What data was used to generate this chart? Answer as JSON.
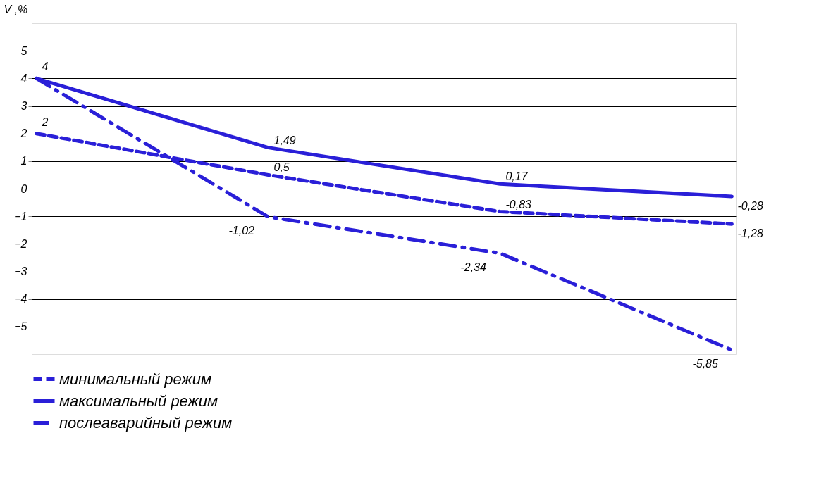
{
  "chart_data": {
    "type": "line",
    "ylabel": "V ,%",
    "categories": [
      null,
      null,
      null,
      null
    ],
    "ylim": [
      -6,
      6
    ],
    "yticks": [
      -5,
      -4,
      -3,
      -2,
      -1,
      0,
      1,
      2,
      3,
      4,
      5
    ],
    "grid": true,
    "legend": "bottom",
    "series": [
      {
        "name": "минимальный режим",
        "color": "#2a1fd8",
        "line_style": "dashed",
        "values": [
          2,
          0.5,
          -0.83,
          -1.28
        ],
        "value_labels": [
          "2",
          "0,5",
          "-0,83",
          "-1,28"
        ]
      },
      {
        "name": "максимальный режим",
        "color": "#2a1fd8",
        "line_style": "solid",
        "values": [
          4,
          1.49,
          0.17,
          -0.28
        ],
        "value_labels": [
          "4",
          "1,49",
          "0,17",
          "-0,28"
        ]
      },
      {
        "name": "послеаварийный режим",
        "color": "#2a1fd8",
        "line_style": "dashdot",
        "values": [
          4,
          -1.02,
          -2.34,
          -5.85
        ],
        "value_labels": [
          null,
          "-1,02",
          "-2,34",
          "-5,85"
        ]
      }
    ]
  }
}
